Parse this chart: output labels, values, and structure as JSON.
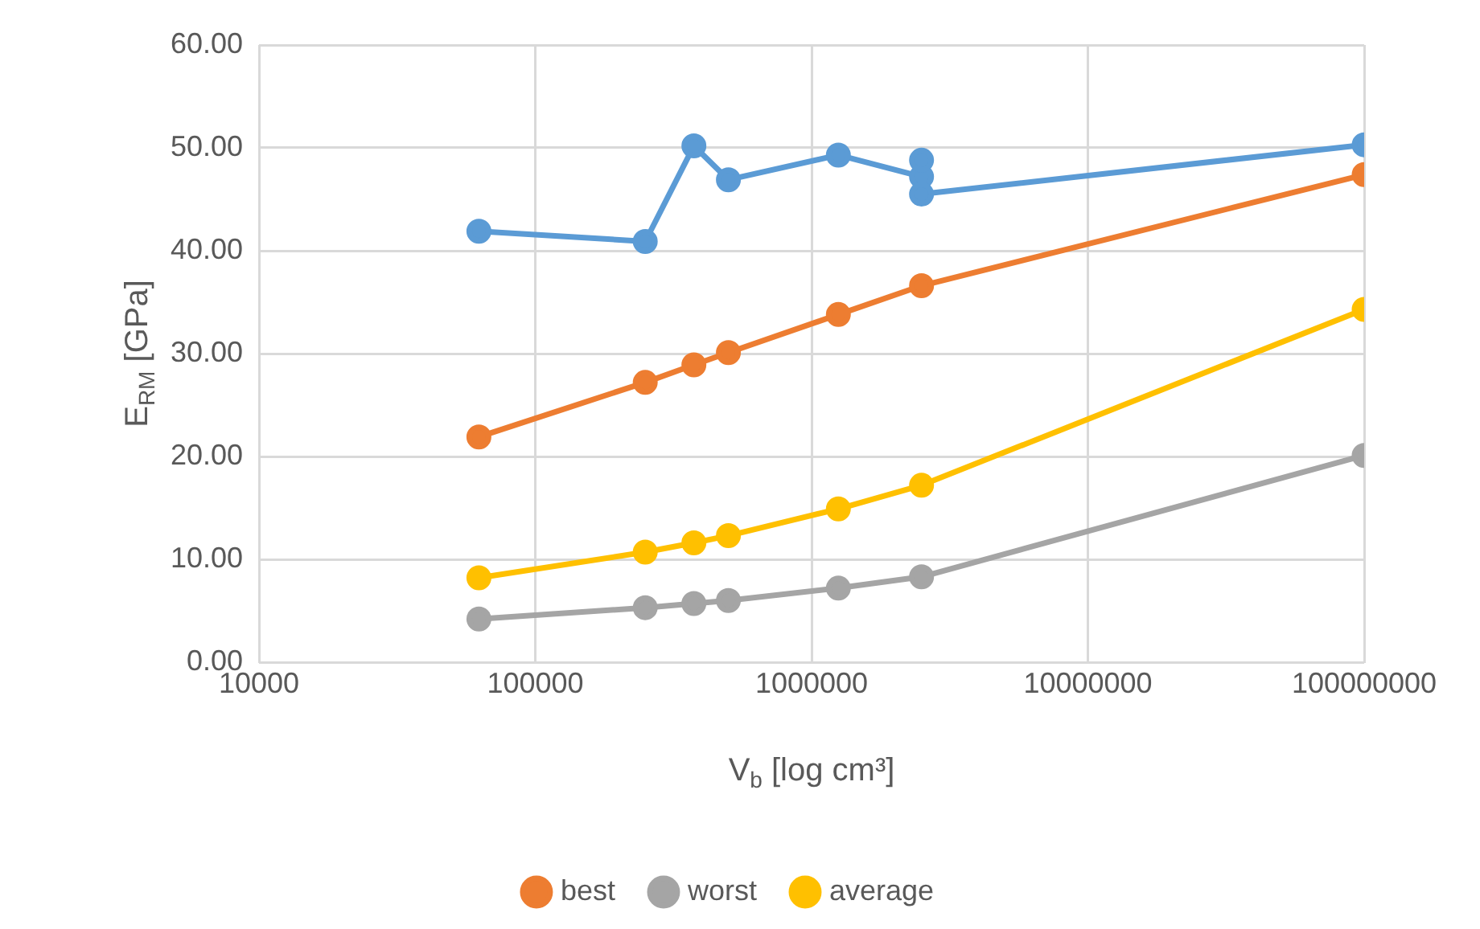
{
  "chart_data": {
    "type": "line",
    "xlabel": "V$_{b}$ [log cm³]",
    "ylabel": "E$_{RM}$ [GPa]",
    "x": [
      62500,
      250000,
      375000,
      500000,
      1250000,
      2500000,
      100000000
    ],
    "series": [
      {
        "color": "#5b9bd5",
        "x": [
          62500,
          250000,
          375000,
          500000,
          1250000,
          2500000,
          2500000,
          2500000,
          100000000
        ],
        "values": [
          41.9,
          40.9,
          50.2,
          46.9,
          49.3,
          47.2,
          48.8,
          45.5,
          50.3
        ]
      },
      {
        "name": "best",
        "color": "#ed7d31",
        "values": [
          21.9,
          27.2,
          28.9,
          30.1,
          33.8,
          36.6,
          47.4
        ]
      },
      {
        "name": "worst",
        "color": "#a5a5a5",
        "values": [
          4.2,
          5.3,
          5.7,
          6.0,
          7.2,
          8.3,
          20.1
        ]
      },
      {
        "name": "average",
        "color": "#ffc000",
        "values": [
          8.2,
          10.7,
          11.6,
          12.3,
          14.9,
          17.2,
          34.3
        ]
      }
    ],
    "log": "x",
    "xlim": [
      10000,
      100000000
    ],
    "xticks": [
      10000,
      100000,
      1000000,
      10000000,
      100000000
    ],
    "ylim": [
      0,
      60
    ],
    "yticks": [
      {
        "value": 0,
        "label": "0.00"
      },
      {
        "value": 10,
        "label": "10.00"
      },
      {
        "value": 20,
        "label": "20.00"
      },
      {
        "value": 30,
        "label": "30.00"
      },
      {
        "value": 40,
        "label": "40.00"
      },
      {
        "value": 50,
        "label": "50.00"
      },
      {
        "value": 60,
        "label": "60.00"
      }
    ],
    "grid": true,
    "legend": "bottom",
    "marker": "circle",
    "line_style": "solid"
  }
}
